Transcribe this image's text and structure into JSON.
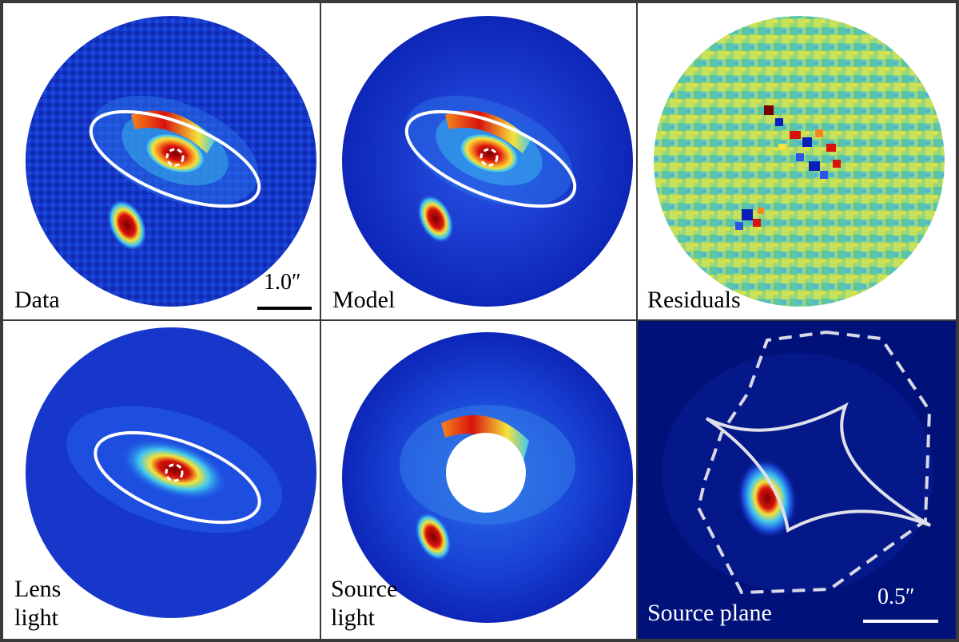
{
  "figure": {
    "panels": [
      {
        "id": "data",
        "label": "Data",
        "scale_bar": "1.0″"
      },
      {
        "id": "model",
        "label": "Model"
      },
      {
        "id": "residuals",
        "label": "Residuals"
      },
      {
        "id": "lens-light",
        "label_line1": "Lens",
        "label_line2": "light"
      },
      {
        "id": "source-light",
        "label_line1": "Source",
        "label_line2": "light"
      },
      {
        "id": "source-plane",
        "label": "Source plane",
        "scale_bar": "0.5″"
      }
    ],
    "colors": {
      "background_blue": "#0a1fb8",
      "mid_blue": "#2a55e8",
      "cyan": "#3fc7f0",
      "yellow": "#f6e23a",
      "orange": "#f5851e",
      "red": "#d8120c",
      "dark_red": "#7a0000",
      "residual_green": "#8fd27c",
      "source_plane_bg": "#00127a",
      "frame": "#3a3a3a"
    }
  }
}
